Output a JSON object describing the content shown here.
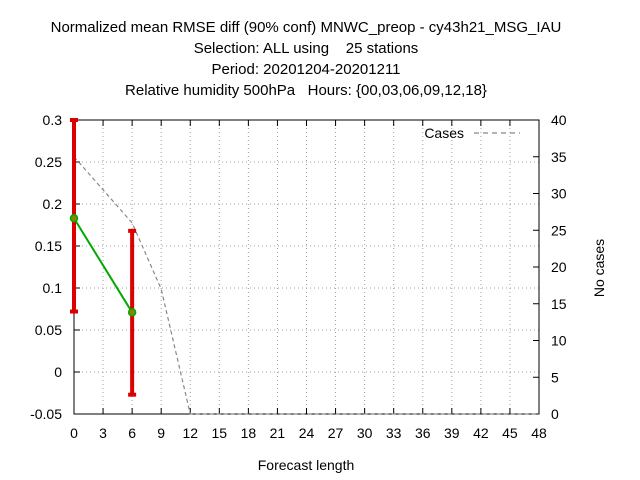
{
  "chart_data": {
    "type": "line",
    "title_lines": [
      "Normalized mean RMSE diff (90% conf) MNWC_preop - cy43h21_MSG_IAU",
      "Selection: ALL using    25 stations",
      "Period: 20201204-20201211",
      "Relative humidity 500hPa   Hours: {00,03,06,09,12,18}"
    ],
    "xlabel": "Forecast length",
    "ylabel": "",
    "y2label": "No cases",
    "xlim": [
      0,
      48
    ],
    "ylim": [
      -0.05,
      0.3
    ],
    "y2lim": [
      0,
      40
    ],
    "x_ticks": [
      "0",
      "3",
      "6",
      "9",
      "12",
      "15",
      "18",
      "21",
      "24",
      "27",
      "30",
      "33",
      "36",
      "39",
      "42",
      "45",
      "48"
    ],
    "y_ticks": [
      "-0.05",
      "0",
      "0.05",
      "0.1",
      "0.15",
      "0.2",
      "0.25",
      "0.3"
    ],
    "y2_ticks": [
      "0",
      "5",
      "10",
      "15",
      "20",
      "25",
      "30",
      "35",
      "40"
    ],
    "grid": true,
    "legend_position": "top-right",
    "series": [
      {
        "axis": "left",
        "style": "line-with-errorbars",
        "color": "#00aa00",
        "errorbar_color": "#dd0000",
        "marker_color": "#888800",
        "x": [
          0,
          6
        ],
        "y": [
          0.183,
          0.071
        ],
        "ylow": [
          0.072,
          -0.027
        ],
        "yhigh": [
          0.3,
          0.168
        ]
      },
      {
        "name": "Cases",
        "axis": "right",
        "style": "dashed",
        "color": "#888888",
        "x": [
          0,
          6,
          9,
          12,
          48
        ],
        "y": [
          35,
          26,
          17,
          0,
          0
        ]
      }
    ]
  }
}
